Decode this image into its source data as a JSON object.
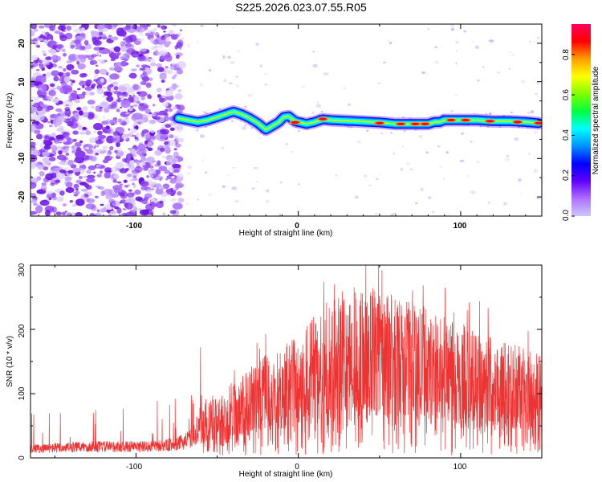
{
  "title": "S225.2026.023.07.55.R05",
  "chart_data": [
    {
      "type": "heatmap",
      "name": "spectrogram",
      "xlabel": "Height of straight line (km)",
      "ylabel": "Frequency (Hz)",
      "xlim": [
        -165,
        150
      ],
      "ylim": [
        -25,
        25
      ],
      "x_ticks": [
        "-100",
        "0",
        "100"
      ],
      "y_ticks": [
        "20",
        "10",
        "0",
        "-10",
        "-20"
      ],
      "ridge": {
        "x": [
          -74,
          -68,
          -62,
          -56,
          -50,
          -45,
          -40,
          -35,
          -30,
          -25,
          -20,
          -16,
          -12,
          -9,
          -6,
          -2,
          5,
          10,
          15,
          20,
          30,
          40,
          50,
          60,
          70,
          80,
          84,
          87,
          90,
          95,
          100,
          110,
          120,
          130,
          140,
          148
        ],
        "y": [
          0.5,
          0,
          -0.5,
          0,
          0.8,
          1.5,
          2.2,
          1.5,
          0.5,
          -0.8,
          -2.5,
          -1.5,
          -0.5,
          0.8,
          1.0,
          -0.3,
          -1.0,
          -0.5,
          0.2,
          0.0,
          -0.2,
          -0.4,
          -0.6,
          -1.0,
          -1.0,
          -1.0,
          -0.5,
          -0.5,
          0.0,
          0.0,
          0.0,
          0.0,
          -0.3,
          -0.3,
          -0.5,
          -0.8
        ]
      },
      "hot_spots": [
        {
          "x": -2,
          "y": -0.6
        },
        {
          "x": 15,
          "y": 0.3
        },
        {
          "x": 50,
          "y": -0.8
        },
        {
          "x": 63,
          "y": -1.0
        },
        {
          "x": 72,
          "y": -1.0
        },
        {
          "x": 78,
          "y": -1.0
        },
        {
          "x": 94,
          "y": 0.0
        },
        {
          "x": 103,
          "y": 0.0
        },
        {
          "x": 118,
          "y": -0.3
        },
        {
          "x": 135,
          "y": -0.5
        },
        {
          "x": 148,
          "y": -0.8
        }
      ],
      "colorbar": {
        "label": "Normalized spectral amplitude",
        "range": [
          0,
          0.95
        ],
        "ticks": [
          "0.0",
          "0.2",
          "0.4",
          "0.6",
          "0.8"
        ],
        "colors": [
          "#c8c8ff",
          "#b070ff",
          "#6000ff",
          "#0000ff",
          "#0090ff",
          "#00ffff",
          "#00ff40",
          "#80ff00",
          "#ffff00",
          "#ffa000",
          "#ff0000",
          "#ff0060"
        ]
      }
    },
    {
      "type": "line",
      "name": "snr",
      "xlabel": "Height of straight line (km)",
      "ylabel": "SNR (10 * v/v)",
      "xlim": [
        -165,
        150
      ],
      "ylim": [
        0,
        300
      ],
      "x_ticks": [
        "-100",
        "0",
        "100"
      ],
      "y_ticks": [
        "300",
        "200",
        "100",
        "0"
      ],
      "line_color": "#ee3333",
      "envelope": {
        "x": [
          -165,
          -150,
          -130,
          -110,
          -90,
          -75,
          -65,
          -60,
          -55,
          -50,
          -40,
          -30,
          -20,
          -10,
          0,
          10,
          20,
          30,
          40,
          50,
          60,
          70,
          80,
          90,
          100,
          110,
          120,
          130,
          140,
          150
        ],
        "y": [
          20,
          22,
          25,
          25,
          25,
          30,
          45,
          80,
          100,
          95,
          120,
          140,
          160,
          175,
          190,
          225,
          250,
          265,
          270,
          265,
          255,
          245,
          235,
          220,
          210,
          200,
          190,
          180,
          170,
          165
        ]
      }
    }
  ]
}
